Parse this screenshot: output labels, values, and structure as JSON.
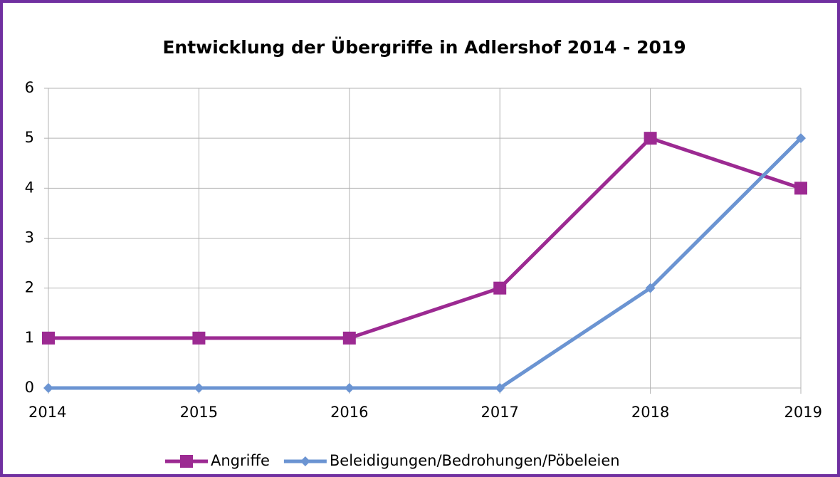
{
  "chart_data": {
    "type": "line",
    "title": "Entwicklung der Übergriffe in Adlershof 2014 - 2019",
    "categories": [
      "2014",
      "2015",
      "2016",
      "2017",
      "2018",
      "2019"
    ],
    "series": [
      {
        "name": "Angriffe",
        "color": "#9c2a92",
        "marker": "square",
        "values": [
          1,
          1,
          1,
          2,
          5,
          4
        ]
      },
      {
        "name": "Beleidigungen/Bedrohungen/Pöbeleien",
        "color": "#6b94d2",
        "marker": "diamond",
        "values": [
          0,
          0,
          0,
          0,
          2,
          5
        ]
      }
    ],
    "ylim": [
      0,
      6
    ],
    "yticks": [
      0,
      1,
      2,
      3,
      4,
      5,
      6
    ],
    "grid": true,
    "legend": "bottom"
  }
}
